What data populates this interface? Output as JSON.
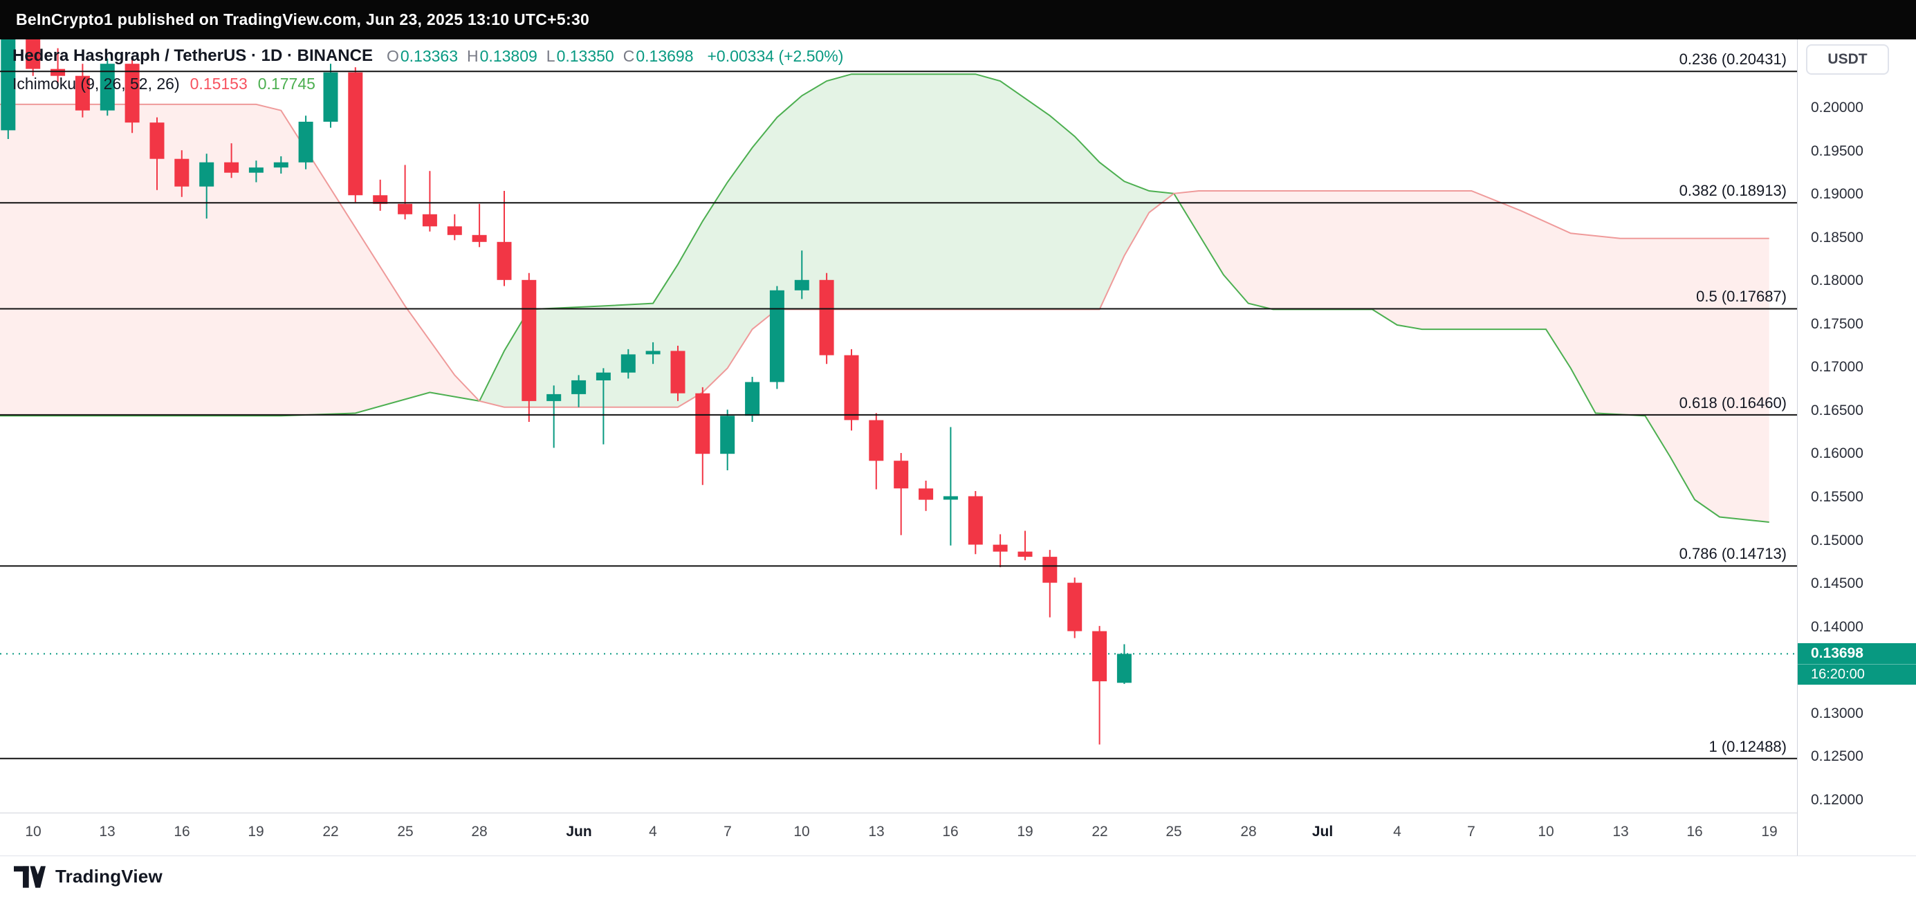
{
  "top_bar": {
    "attribution": "BeInCrypto1 published on TradingView.com, Jun 23, 2025 13:10 UTC+5:30"
  },
  "header": {
    "symbol_line": "Hedera Hashgraph / TetherUS · 1D · BINANCE",
    "ohlc": {
      "o_label": "O",
      "o": "0.13363",
      "h_label": "H",
      "h": "0.13809",
      "l_label": "L",
      "l": "0.13350",
      "c_label": "C",
      "c": "0.13698",
      "change": "+0.00334 (+2.50%)"
    },
    "indicator": {
      "title": "Ichimoku (9, 26, 52, 26)",
      "value1": "0.15153",
      "value2": "0.17745"
    }
  },
  "price_axis": {
    "currency": "USDT",
    "labels": [
      "0.20000",
      "0.19500",
      "0.19000",
      "0.18500",
      "0.18000",
      "0.17500",
      "0.17000",
      "0.16500",
      "0.16000",
      "0.15500",
      "0.15000",
      "0.14500",
      "0.14000",
      "0.13500",
      "0.13000",
      "0.12500",
      "0.12000"
    ],
    "last_price": "0.13698",
    "countdown": "16:20:00"
  },
  "time_axis": [
    {
      "d": 0,
      "label": "10"
    },
    {
      "d": 3,
      "label": "13"
    },
    {
      "d": 6,
      "label": "16"
    },
    {
      "d": 9,
      "label": "19"
    },
    {
      "d": 12,
      "label": "22"
    },
    {
      "d": 15,
      "label": "25"
    },
    {
      "d": 18,
      "label": "28"
    },
    {
      "d": 22,
      "label": "Jun",
      "bold": true
    },
    {
      "d": 25,
      "label": "4"
    },
    {
      "d": 28,
      "label": "7"
    },
    {
      "d": 31,
      "label": "10"
    },
    {
      "d": 34,
      "label": "13"
    },
    {
      "d": 37,
      "label": "16"
    },
    {
      "d": 40,
      "label": "19"
    },
    {
      "d": 43,
      "label": "22"
    },
    {
      "d": 46,
      "label": "25"
    },
    {
      "d": 49,
      "label": "28"
    },
    {
      "d": 52,
      "label": "Jul",
      "bold": true
    },
    {
      "d": 55,
      "label": "4"
    },
    {
      "d": 58,
      "label": "7"
    },
    {
      "d": 61,
      "label": "10"
    },
    {
      "d": 64,
      "label": "13"
    },
    {
      "d": 67,
      "label": "16"
    },
    {
      "d": 70,
      "label": "19"
    }
  ],
  "fib_levels": [
    {
      "label": "0.236 (0.20431)",
      "price": 0.20431
    },
    {
      "label": "0.382 (0.18913)",
      "price": 0.18913
    },
    {
      "label": "0.5 (0.17687)",
      "price": 0.17687
    },
    {
      "label": "0.618 (0.16460)",
      "price": 0.1646
    },
    {
      "label": "0.786 (0.14713)",
      "price": 0.14713
    },
    {
      "label": "1 (0.12488)",
      "price": 0.12488
    }
  ],
  "footer": {
    "brand": "TradingView"
  },
  "colors": {
    "up": "#089981",
    "down": "#F23645",
    "cloud_green": "rgba(76,175,80,0.15)",
    "cloud_red": "rgba(244,67,54,0.09)",
    "span_a_line": "#4CAF50",
    "span_b_line": "#EF9A9A",
    "fib_line": "#111111",
    "indicator_value1": "#f7525f",
    "indicator_value2": "#4caf50",
    "badge_bg": "#089981"
  },
  "chart_data": {
    "type": "candlestick",
    "title": "Hedera Hashgraph / TetherUS · 1D · BINANCE with Ichimoku (9, 26, 52, 26) cloud and Fibonacci retracement",
    "x_axis": "Daily bars, May 9 – Jun 23 2025; Ichimoku cloud projected forward to Jul 19 2025",
    "y_axis_range": [
      0.1185,
      0.2085
    ],
    "last_price": 0.13698,
    "candles": [
      {
        "t": "May 9",
        "o": 0.1975,
        "h": 0.209,
        "l": 0.1965,
        "c": 0.2082
      },
      {
        "t": "May 10",
        "o": 0.2082,
        "h": 0.2094,
        "l": 0.2038,
        "c": 0.2046
      },
      {
        "t": "May 11",
        "o": 0.2046,
        "h": 0.207,
        "l": 0.203,
        "c": 0.2038
      },
      {
        "t": "May 12",
        "o": 0.2038,
        "h": 0.2052,
        "l": 0.199,
        "c": 0.1998
      },
      {
        "t": "May 13",
        "o": 0.1998,
        "h": 0.2058,
        "l": 0.1992,
        "c": 0.2052
      },
      {
        "t": "May 14",
        "o": 0.2052,
        "h": 0.2058,
        "l": 0.1972,
        "c": 0.1984
      },
      {
        "t": "May 15",
        "o": 0.1984,
        "h": 0.199,
        "l": 0.1906,
        "c": 0.1942
      },
      {
        "t": "May 16",
        "o": 0.1942,
        "h": 0.1952,
        "l": 0.1898,
        "c": 0.191
      },
      {
        "t": "May 17",
        "o": 0.191,
        "h": 0.1948,
        "l": 0.1873,
        "c": 0.1938
      },
      {
        "t": "May 18",
        "o": 0.1938,
        "h": 0.196,
        "l": 0.192,
        "c": 0.1926
      },
      {
        "t": "May 19",
        "o": 0.1926,
        "h": 0.194,
        "l": 0.1915,
        "c": 0.1932
      },
      {
        "t": "May 20",
        "o": 0.1932,
        "h": 0.1945,
        "l": 0.1925,
        "c": 0.1938
      },
      {
        "t": "May 21",
        "o": 0.1938,
        "h": 0.1992,
        "l": 0.193,
        "c": 0.1985
      },
      {
        "t": "May 22",
        "o": 0.1985,
        "h": 0.2052,
        "l": 0.1978,
        "c": 0.2042
      },
      {
        "t": "May 23",
        "o": 0.2042,
        "h": 0.2048,
        "l": 0.1892,
        "c": 0.19
      },
      {
        "t": "May 24",
        "o": 0.19,
        "h": 0.1918,
        "l": 0.1882,
        "c": 0.189
      },
      {
        "t": "May 25",
        "o": 0.189,
        "h": 0.1935,
        "l": 0.1872,
        "c": 0.1878
      },
      {
        "t": "May 26",
        "o": 0.1878,
        "h": 0.1928,
        "l": 0.1858,
        "c": 0.1864
      },
      {
        "t": "May 27",
        "o": 0.1864,
        "h": 0.1878,
        "l": 0.1848,
        "c": 0.1854
      },
      {
        "t": "May 28",
        "o": 0.1854,
        "h": 0.189,
        "l": 0.184,
        "c": 0.1846
      },
      {
        "t": "May 29",
        "o": 0.1846,
        "h": 0.1905,
        "l": 0.1795,
        "c": 0.1802
      },
      {
        "t": "May 30",
        "o": 0.1802,
        "h": 0.181,
        "l": 0.1638,
        "c": 0.1662
      },
      {
        "t": "May 31",
        "o": 0.1662,
        "h": 0.168,
        "l": 0.1608,
        "c": 0.167
      },
      {
        "t": "Jun 1",
        "o": 0.167,
        "h": 0.1692,
        "l": 0.1655,
        "c": 0.1686
      },
      {
        "t": "Jun 2",
        "o": 0.1686,
        "h": 0.17,
        "l": 0.1612,
        "c": 0.1695
      },
      {
        "t": "Jun 3",
        "o": 0.1695,
        "h": 0.1722,
        "l": 0.1688,
        "c": 0.1716
      },
      {
        "t": "Jun 4",
        "o": 0.1716,
        "h": 0.173,
        "l": 0.1705,
        "c": 0.172
      },
      {
        "t": "Jun 5",
        "o": 0.172,
        "h": 0.1726,
        "l": 0.1662,
        "c": 0.1671
      },
      {
        "t": "Jun 6",
        "o": 0.1671,
        "h": 0.1678,
        "l": 0.1565,
        "c": 0.1601
      },
      {
        "t": "Jun 7",
        "o": 0.1601,
        "h": 0.1652,
        "l": 0.1582,
        "c": 0.1645
      },
      {
        "t": "Jun 8",
        "o": 0.1645,
        "h": 0.169,
        "l": 0.1638,
        "c": 0.1684
      },
      {
        "t": "Jun 9",
        "o": 0.1684,
        "h": 0.1795,
        "l": 0.1676,
        "c": 0.179
      },
      {
        "t": "Jun 10",
        "o": 0.179,
        "h": 0.1836,
        "l": 0.178,
        "c": 0.1802
      },
      {
        "t": "Jun 11",
        "o": 0.1802,
        "h": 0.181,
        "l": 0.1705,
        "c": 0.1715
      },
      {
        "t": "Jun 12",
        "o": 0.1715,
        "h": 0.1722,
        "l": 0.1628,
        "c": 0.164
      },
      {
        "t": "Jun 13",
        "o": 0.164,
        "h": 0.1648,
        "l": 0.156,
        "c": 0.1593
      },
      {
        "t": "Jun 14",
        "o": 0.1593,
        "h": 0.1602,
        "l": 0.1507,
        "c": 0.1561
      },
      {
        "t": "Jun 15",
        "o": 0.1561,
        "h": 0.157,
        "l": 0.1535,
        "c": 0.1548
      },
      {
        "t": "Jun 16",
        "o": 0.1548,
        "h": 0.1632,
        "l": 0.1495,
        "c": 0.1552
      },
      {
        "t": "Jun 17",
        "o": 0.1552,
        "h": 0.1558,
        "l": 0.1485,
        "c": 0.1496
      },
      {
        "t": "Jun 18",
        "o": 0.1496,
        "h": 0.1508,
        "l": 0.147,
        "c": 0.1488
      },
      {
        "t": "Jun 19",
        "o": 0.1488,
        "h": 0.1512,
        "l": 0.1478,
        "c": 0.1482
      },
      {
        "t": "Jun 20",
        "o": 0.1482,
        "h": 0.149,
        "l": 0.1412,
        "c": 0.1452
      },
      {
        "t": "Jun 21",
        "o": 0.1452,
        "h": 0.1458,
        "l": 0.1388,
        "c": 0.1396
      },
      {
        "t": "Jun 22",
        "o": 0.1396,
        "h": 0.1402,
        "l": 0.1265,
        "c": 0.1338
      },
      {
        "t": "Jun 23",
        "o": 0.13363,
        "h": 0.13809,
        "l": 0.1335,
        "c": 0.13698
      }
    ],
    "ichimoku": {
      "span_a": [
        [
          -2,
          0.1645
        ],
        [
          10,
          0.1645
        ],
        [
          13,
          0.1648
        ],
        [
          16,
          0.1672
        ],
        [
          18,
          0.1662
        ],
        [
          19,
          0.172
        ],
        [
          20,
          0.1768
        ],
        [
          23,
          0.1772
        ],
        [
          25,
          0.1775
        ],
        [
          26,
          0.182
        ],
        [
          27,
          0.187
        ],
        [
          28,
          0.1915
        ],
        [
          29,
          0.1955
        ],
        [
          30,
          0.199
        ],
        [
          31,
          0.2015
        ],
        [
          32,
          0.2032
        ],
        [
          33,
          0.204
        ],
        [
          38,
          0.204
        ],
        [
          39,
          0.2032
        ],
        [
          40,
          0.2012
        ],
        [
          41,
          0.1992
        ],
        [
          42,
          0.1968
        ],
        [
          43,
          0.1938
        ],
        [
          44,
          0.1916
        ],
        [
          45,
          0.1905
        ],
        [
          46,
          0.1902
        ],
        [
          47,
          0.1855
        ],
        [
          48,
          0.1808
        ],
        [
          49,
          0.1775
        ],
        [
          50,
          0.1768
        ],
        [
          54,
          0.1768
        ],
        [
          55,
          0.175
        ],
        [
          56,
          0.1745
        ],
        [
          61,
          0.1745
        ],
        [
          62,
          0.17
        ],
        [
          63,
          0.1648
        ],
        [
          65,
          0.1645
        ],
        [
          66,
          0.1598
        ],
        [
          67,
          0.1548
        ],
        [
          68,
          0.1528
        ],
        [
          70,
          0.1522
        ]
      ],
      "span_b": [
        [
          -2,
          0.2005
        ],
        [
          9,
          0.2005
        ],
        [
          10,
          0.1998
        ],
        [
          15,
          0.1772
        ],
        [
          17,
          0.1692
        ],
        [
          18,
          0.1662
        ],
        [
          19,
          0.1655
        ],
        [
          26,
          0.1655
        ],
        [
          27,
          0.1672
        ],
        [
          28,
          0.17
        ],
        [
          29,
          0.1745
        ],
        [
          30,
          0.1768
        ],
        [
          43,
          0.1768
        ],
        [
          44,
          0.183
        ],
        [
          45,
          0.188
        ],
        [
          46,
          0.1902
        ],
        [
          47,
          0.1905
        ],
        [
          58,
          0.1905
        ],
        [
          60,
          0.1882
        ],
        [
          62,
          0.1856
        ],
        [
          64,
          0.185
        ],
        [
          70,
          0.185
        ]
      ]
    },
    "fib_retracement": [
      {
        "level": "0.236",
        "price": 0.20431
      },
      {
        "level": "0.382",
        "price": 0.18913
      },
      {
        "level": "0.5",
        "price": 0.17687
      },
      {
        "level": "0.618",
        "price": 0.1646
      },
      {
        "level": "0.786",
        "price": 0.14713
      },
      {
        "level": "1",
        "price": 0.12488
      }
    ]
  }
}
